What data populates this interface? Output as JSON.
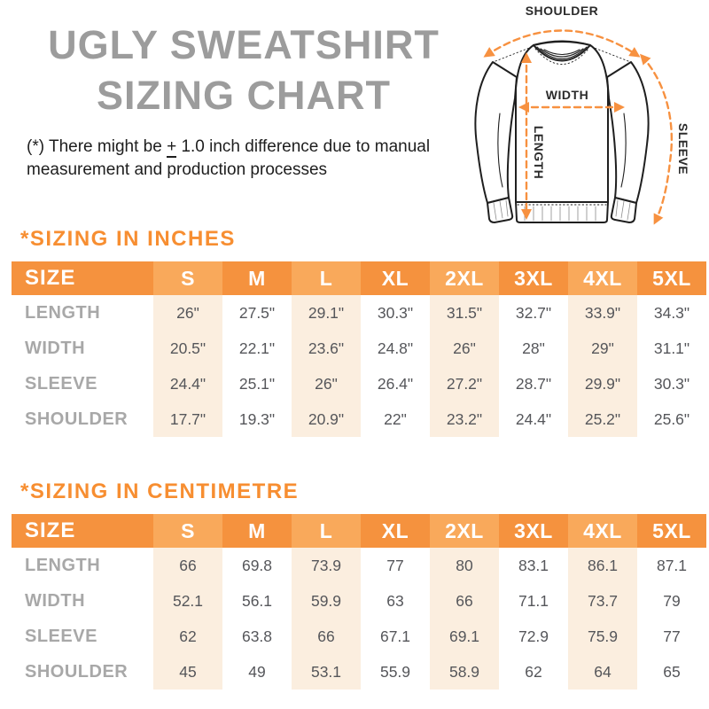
{
  "colors": {
    "table_header_orange": "#F5923E",
    "table_header_highlight": "#F9A95B",
    "column_highlight_peach": "#FBEEDF",
    "section_heading_orange": "#F78E31",
    "title_gray": "#9C9C9C",
    "row_label_gray": "#A8A8A8",
    "value_text": "#55565A",
    "diagram_arrow_orange": "#F79140",
    "diagram_line": "#1F1F1F"
  },
  "header": {
    "title_line1": "UGLY SWEATSHIRT",
    "title_line2": "SIZING CHART",
    "disclaimer_prefix": "(*) There might be ",
    "disclaimer_plusminus": "+",
    "disclaimer_suffix": " 1.0 inch difference due to manual measurement and production processes"
  },
  "diagram": {
    "shoulder_label": "SHOULDER",
    "width_label": "WIDTH",
    "length_label": "LENGTH",
    "sleeve_label": "SLEEVE"
  },
  "tables": [
    {
      "heading": "*SIZING IN INCHES",
      "size_header": "SIZE",
      "columns": [
        {
          "label": "S",
          "highlighted": true
        },
        {
          "label": "M",
          "highlighted": false
        },
        {
          "label": "L",
          "highlighted": true
        },
        {
          "label": "XL",
          "highlighted": false
        },
        {
          "label": "2XL",
          "highlighted": true
        },
        {
          "label": "3XL",
          "highlighted": false
        },
        {
          "label": "4XL",
          "highlighted": true
        },
        {
          "label": "5XL",
          "highlighted": false
        }
      ],
      "rows": [
        {
          "label": "LENGTH",
          "values": [
            "26\"",
            "27.5\"",
            "29.1\"",
            "30.3\"",
            "31.5\"",
            "32.7\"",
            "33.9\"",
            "34.3\""
          ]
        },
        {
          "label": "WIDTH",
          "values": [
            "20.5\"",
            "22.1\"",
            "23.6\"",
            "24.8\"",
            "26\"",
            "28\"",
            "29\"",
            "31.1\""
          ]
        },
        {
          "label": "SLEEVE",
          "values": [
            "24.4\"",
            "25.1\"",
            "26\"",
            "26.4\"",
            "27.2\"",
            "28.7\"",
            "29.9\"",
            "30.3\""
          ]
        },
        {
          "label": "SHOULDER",
          "values": [
            "17.7\"",
            "19.3\"",
            "20.9\"",
            "22\"",
            "23.2\"",
            "24.4\"",
            "25.2\"",
            "25.6\""
          ]
        }
      ]
    },
    {
      "heading": "*SIZING IN CENTIMETRE",
      "size_header": "SIZE",
      "columns": [
        {
          "label": "S",
          "highlighted": true
        },
        {
          "label": "M",
          "highlighted": false
        },
        {
          "label": "L",
          "highlighted": true
        },
        {
          "label": "XL",
          "highlighted": false
        },
        {
          "label": "2XL",
          "highlighted": true
        },
        {
          "label": "3XL",
          "highlighted": false
        },
        {
          "label": "4XL",
          "highlighted": true
        },
        {
          "label": "5XL",
          "highlighted": false
        }
      ],
      "rows": [
        {
          "label": "LENGTH",
          "values": [
            "66",
            "69.8",
            "73.9",
            "77",
            "80",
            "83.1",
            "86.1",
            "87.1"
          ]
        },
        {
          "label": "WIDTH",
          "values": [
            "52.1",
            "56.1",
            "59.9",
            "63",
            "66",
            "71.1",
            "73.7",
            "79"
          ]
        },
        {
          "label": "SLEEVE",
          "values": [
            "62",
            "63.8",
            "66",
            "67.1",
            "69.1",
            "72.9",
            "75.9",
            "77"
          ]
        },
        {
          "label": "SHOULDER",
          "values": [
            "45",
            "49",
            "53.1",
            "55.9",
            "58.9",
            "62",
            "64",
            "65"
          ]
        }
      ]
    }
  ]
}
